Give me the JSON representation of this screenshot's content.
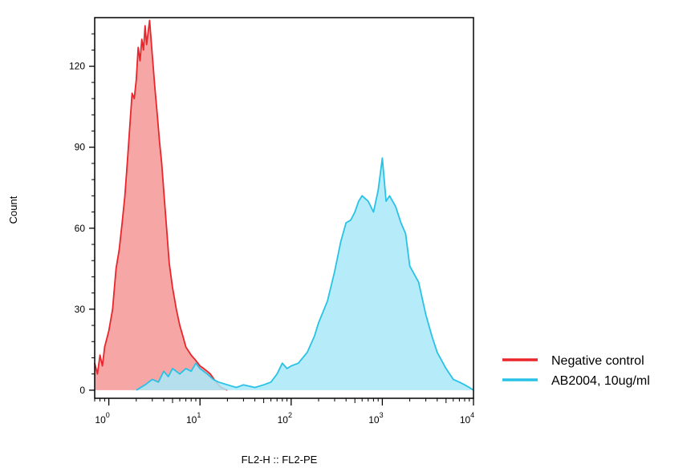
{
  "chart_data": {
    "type": "area",
    "title": "",
    "xlabel": "FL2-H :: FL2-PE",
    "ylabel": "Count",
    "xscale": "log",
    "xlim": [
      0.7,
      10000
    ],
    "ylim": [
      -3,
      138
    ],
    "yticks": [
      {
        "value": 0,
        "label": "0"
      },
      {
        "value": 30,
        "label": "30"
      },
      {
        "value": 60,
        "label": "60"
      },
      {
        "value": 90,
        "label": "90"
      },
      {
        "value": 120,
        "label": "120"
      }
    ],
    "xticks": [
      {
        "value": 1,
        "base": "10",
        "exp": "0"
      },
      {
        "value": 10,
        "base": "10",
        "exp": "1"
      },
      {
        "value": 100,
        "base": "10",
        "exp": "2"
      },
      {
        "value": 1000,
        "base": "10",
        "exp": "3"
      },
      {
        "value": 10000,
        "base": "10",
        "exp": "4"
      }
    ],
    "legend_position": "right",
    "series": [
      {
        "name": "Negative control",
        "color": "#e8262b",
        "fill": "#f7a1a1",
        "points": [
          [
            0.7,
            10
          ],
          [
            0.75,
            6
          ],
          [
            0.8,
            13
          ],
          [
            0.85,
            9
          ],
          [
            0.9,
            16
          ],
          [
            1.0,
            22
          ],
          [
            1.1,
            30
          ],
          [
            1.2,
            45
          ],
          [
            1.3,
            52
          ],
          [
            1.4,
            62
          ],
          [
            1.5,
            72
          ],
          [
            1.6,
            85
          ],
          [
            1.7,
            98
          ],
          [
            1.8,
            110
          ],
          [
            1.9,
            108
          ],
          [
            2.0,
            115
          ],
          [
            2.1,
            127
          ],
          [
            2.2,
            122
          ],
          [
            2.3,
            130
          ],
          [
            2.4,
            126
          ],
          [
            2.5,
            135
          ],
          [
            2.6,
            128
          ],
          [
            2.8,
            137
          ],
          [
            3.0,
            124
          ],
          [
            3.2,
            112
          ],
          [
            3.4,
            102
          ],
          [
            3.6,
            92
          ],
          [
            3.8,
            84
          ],
          [
            4.0,
            74
          ],
          [
            4.3,
            60
          ],
          [
            4.6,
            47
          ],
          [
            5.0,
            38
          ],
          [
            5.5,
            30
          ],
          [
            6.0,
            24
          ],
          [
            6.5,
            20
          ],
          [
            7.0,
            16
          ],
          [
            8.0,
            13
          ],
          [
            9.0,
            11
          ],
          [
            10.0,
            9
          ],
          [
            11.0,
            8
          ],
          [
            12.0,
            7
          ],
          [
            13.0,
            6
          ],
          [
            15.0,
            3
          ],
          [
            17.0,
            1
          ],
          [
            20.0,
            0
          ]
        ]
      },
      {
        "name": "AB2004, 10ug/ml",
        "color": "#29c2e6",
        "fill": "#a9e9f8",
        "points": [
          [
            2.0,
            0
          ],
          [
            2.5,
            2
          ],
          [
            3.0,
            4
          ],
          [
            3.5,
            3
          ],
          [
            4.0,
            7
          ],
          [
            4.5,
            5
          ],
          [
            5.0,
            8
          ],
          [
            6.0,
            6
          ],
          [
            7.0,
            8
          ],
          [
            8.0,
            7
          ],
          [
            9.0,
            10
          ],
          [
            10.0,
            8
          ],
          [
            12.0,
            6
          ],
          [
            14.0,
            4
          ],
          [
            16.0,
            3
          ],
          [
            20.0,
            2
          ],
          [
            25.0,
            1
          ],
          [
            30.0,
            2
          ],
          [
            40.0,
            1
          ],
          [
            50.0,
            2
          ],
          [
            60.0,
            3
          ],
          [
            70.0,
            6
          ],
          [
            80.0,
            10
          ],
          [
            90.0,
            8
          ],
          [
            100.0,
            9
          ],
          [
            120.0,
            10
          ],
          [
            150.0,
            14
          ],
          [
            180.0,
            20
          ],
          [
            200.0,
            25
          ],
          [
            250.0,
            33
          ],
          [
            300.0,
            44
          ],
          [
            350.0,
            55
          ],
          [
            400.0,
            62
          ],
          [
            450.0,
            63
          ],
          [
            500.0,
            66
          ],
          [
            550.0,
            70
          ],
          [
            600.0,
            72
          ],
          [
            700.0,
            70
          ],
          [
            800.0,
            66
          ],
          [
            900.0,
            74
          ],
          [
            1000.0,
            86
          ],
          [
            1100.0,
            70
          ],
          [
            1200.0,
            72
          ],
          [
            1400.0,
            68
          ],
          [
            1600.0,
            62
          ],
          [
            1800.0,
            58
          ],
          [
            2000.0,
            46
          ],
          [
            2500.0,
            40
          ],
          [
            3000.0,
            28
          ],
          [
            3500.0,
            20
          ],
          [
            4000.0,
            14
          ],
          [
            5000.0,
            8
          ],
          [
            6000.0,
            4
          ],
          [
            7000.0,
            3
          ],
          [
            8000.0,
            2
          ],
          [
            9000.0,
            1
          ],
          [
            10000.0,
            0
          ]
        ]
      }
    ]
  }
}
